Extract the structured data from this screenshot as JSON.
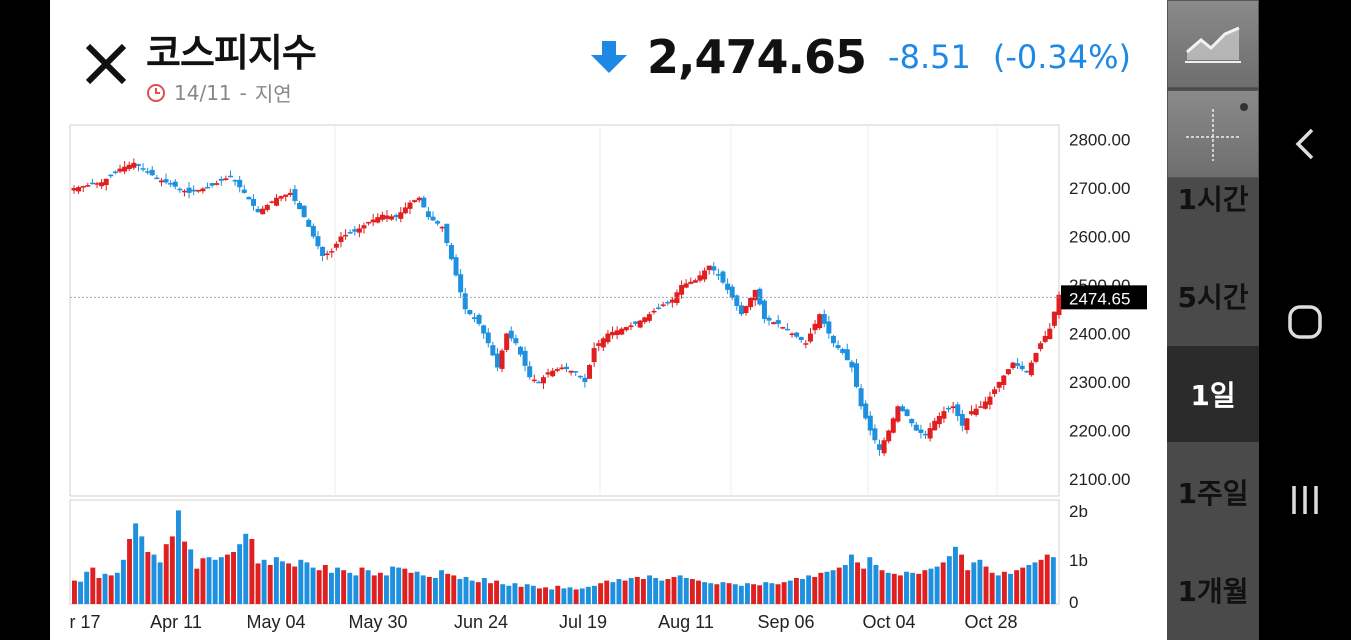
{
  "header": {
    "title": "코스피지수",
    "date": "14/11",
    "separator": "-",
    "delay_label": "지연",
    "price": "2,474.65",
    "change": "-8.51",
    "change_pct": "(-0.34%)"
  },
  "colors": {
    "up": "#e02020",
    "down": "#1e90e0",
    "change": "#1e88e5"
  },
  "chart_data": {
    "type": "candlestick",
    "price_axis": {
      "ticks": [
        "2800.00",
        "2700.00",
        "2600.00",
        "2500.00",
        "2400.00",
        "2300.00",
        "2200.00",
        "2100.00"
      ],
      "range": [
        2065,
        2830
      ]
    },
    "last_price_label": "2474.65",
    "volume_axis": {
      "ticks": [
        "2b",
        "1b",
        "0"
      ],
      "range": [
        0,
        2000000000
      ]
    },
    "x_labels": [
      "r 17",
      "Apr 11",
      "May 04",
      "May 30",
      "Jun 24",
      "Jul 19",
      "Aug 11",
      "Sep 06",
      "Oct 04",
      "Oct 28"
    ],
    "close_path": [
      [
        0,
        2700
      ],
      [
        6,
        2712
      ],
      [
        10,
        2740
      ],
      [
        13,
        2752
      ],
      [
        18,
        2720
      ],
      [
        25,
        2690
      ],
      [
        30,
        2705
      ],
      [
        34,
        2725
      ],
      [
        37,
        2690
      ],
      [
        40,
        2650
      ],
      [
        44,
        2680
      ],
      [
        47,
        2690
      ],
      [
        50,
        2640
      ],
      [
        52,
        2600
      ],
      [
        54,
        2560
      ],
      [
        56,
        2570
      ],
      [
        58,
        2600
      ],
      [
        61,
        2610
      ],
      [
        64,
        2630
      ],
      [
        67,
        2645
      ],
      [
        70,
        2640
      ],
      [
        73,
        2670
      ],
      [
        75,
        2680
      ],
      [
        77,
        2640
      ],
      [
        80,
        2620
      ],
      [
        83,
        2520
      ],
      [
        85,
        2450
      ],
      [
        88,
        2420
      ],
      [
        90,
        2380
      ],
      [
        92,
        2330
      ],
      [
        94,
        2400
      ],
      [
        96,
        2380
      ],
      [
        99,
        2310
      ],
      [
        101,
        2300
      ],
      [
        103,
        2320
      ],
      [
        106,
        2330
      ],
      [
        109,
        2320
      ],
      [
        111,
        2300
      ],
      [
        113,
        2370
      ],
      [
        116,
        2400
      ],
      [
        119,
        2410
      ],
      [
        122,
        2420
      ],
      [
        125,
        2440
      ],
      [
        128,
        2460
      ],
      [
        130,
        2470
      ],
      [
        132,
        2500
      ],
      [
        135,
        2510
      ],
      [
        138,
        2540
      ],
      [
        140,
        2520
      ],
      [
        142,
        2490
      ],
      [
        145,
        2440
      ],
      [
        148,
        2490
      ],
      [
        150,
        2430
      ],
      [
        153,
        2420
      ],
      [
        156,
        2400
      ],
      [
        159,
        2380
      ],
      [
        162,
        2440
      ],
      [
        165,
        2380
      ],
      [
        167,
        2360
      ],
      [
        169,
        2330
      ],
      [
        171,
        2250
      ],
      [
        173,
        2200
      ],
      [
        175,
        2160
      ],
      [
        177,
        2200
      ],
      [
        179,
        2250
      ],
      [
        181,
        2230
      ],
      [
        183,
        2200
      ],
      [
        185,
        2190
      ],
      [
        187,
        2220
      ],
      [
        189,
        2240
      ],
      [
        191,
        2250
      ],
      [
        193,
        2210
      ],
      [
        195,
        2240
      ],
      [
        197,
        2250
      ],
      [
        199,
        2270
      ],
      [
        201,
        2300
      ],
      [
        204,
        2340
      ],
      [
        207,
        2320
      ],
      [
        210,
        2380
      ],
      [
        212,
        2410
      ],
      [
        214,
        2480
      ]
    ],
    "volume_heights": [
      0.45,
      0.43,
      0.62,
      0.7,
      0.5,
      0.58,
      0.55,
      0.6,
      0.85,
      1.25,
      1.55,
      1.3,
      1.0,
      0.95,
      0.8,
      1.15,
      1.3,
      1.8,
      1.2,
      1.05,
      0.68,
      0.88,
      0.9,
      0.85,
      0.9,
      0.95,
      1.0,
      1.15,
      1.35,
      1.25,
      0.78,
      0.85,
      0.75,
      0.9,
      0.82,
      0.78,
      0.72,
      0.85,
      0.8,
      0.7,
      0.65,
      0.75,
      0.6,
      0.7,
      0.65,
      0.6,
      0.55,
      0.7,
      0.65,
      0.55,
      0.6,
      0.55,
      0.72,
      0.7,
      0.68,
      0.6,
      0.62,
      0.55,
      0.52,
      0.5,
      0.65,
      0.58,
      0.55,
      0.48,
      0.52,
      0.45,
      0.42,
      0.5,
      0.4,
      0.45,
      0.38,
      0.35,
      0.4,
      0.33,
      0.38,
      0.35,
      0.3,
      0.32,
      0.28,
      0.35,
      0.3,
      0.32,
      0.28,
      0.3,
      0.33,
      0.35,
      0.4,
      0.45,
      0.42,
      0.48,
      0.45,
      0.5,
      0.52,
      0.48,
      0.55,
      0.5,
      0.45,
      0.48,
      0.52,
      0.55,
      0.5,
      0.48,
      0.45,
      0.42,
      0.4,
      0.38,
      0.42,
      0.4,
      0.38,
      0.35,
      0.4,
      0.38,
      0.36,
      0.42,
      0.4,
      0.38,
      0.42,
      0.45,
      0.5,
      0.48,
      0.55,
      0.52,
      0.6,
      0.62,
      0.65,
      0.7,
      0.75,
      0.95,
      0.8,
      0.68,
      0.9,
      0.75,
      0.65,
      0.6,
      0.58,
      0.55,
      0.62,
      0.6,
      0.58,
      0.65,
      0.68,
      0.72,
      0.8,
      0.92,
      1.1,
      0.95,
      0.65,
      0.8,
      0.85,
      0.72,
      0.6,
      0.55,
      0.62,
      0.58,
      0.65,
      0.7,
      0.75,
      0.8,
      0.85,
      0.95,
      0.9
    ],
    "volume_colors": "rbbrrbrbbrbbrbbrrbrbrrbbbrrbbrrbrbbrrbbbrrbbrbbrbrrbbbrrbbrbbrrbbbrbrrbbbrbbrrbrbbrbbbrrbbrbrrbbbrrbbrrbbrbrbbbrrbbrrbrbbrrbbrbbrrbbrbrrbbrrbbrbbrrbbrrbrbrrbbrrbbrbrrb"
  },
  "sidebar": {
    "chart_icon": "line-chart-icon",
    "crosshair_icon": "crosshair-icon",
    "items": [
      "1시간",
      "5시간",
      "1일",
      "1주일",
      "1개월"
    ],
    "active_index": 2
  },
  "navbar": {
    "back": "back-icon",
    "home": "home-icon",
    "recents": "recents-icon"
  }
}
